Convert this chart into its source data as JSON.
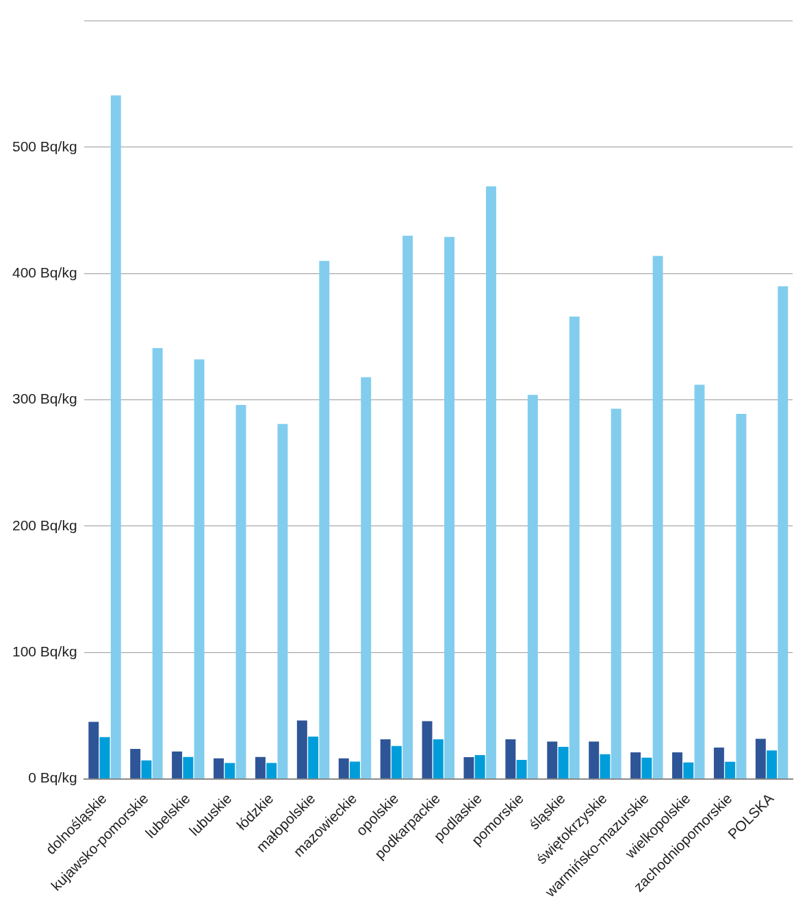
{
  "chart_data": {
    "type": "bar",
    "categories": [
      "dolnośląskie",
      "kujawsko-pomorskie",
      "lubelskie",
      "lubuskie",
      "łódzkie",
      "małopolskie",
      "mazowieckie",
      "opolskie",
      "podkarpackie",
      "podlaskie",
      "pomorskie",
      "śląskie",
      "świętokrzyskie",
      "warmińsko-mazurskie",
      "wielkopolskie",
      "zachodniopomorskie",
      "POLSKA"
    ],
    "series": [
      {
        "color": "#2e5597",
        "values": [
          45.1,
          23.7,
          21.6,
          16.2,
          17.3,
          46.2,
          16.2,
          31.2,
          45.6,
          17.2,
          31.2,
          29.5,
          29.5,
          21.0,
          21.0,
          24.7,
          31.7
        ]
      },
      {
        "color": "#009ddb",
        "values": [
          33.0,
          14.6,
          17.3,
          12.5,
          12.5,
          33.4,
          13.6,
          25.9,
          31.2,
          18.8,
          15.0,
          25.3,
          19.4,
          16.8,
          12.9,
          13.5,
          22.5
        ]
      },
      {
        "color": "#82cdee",
        "values": [
          541,
          341,
          332,
          296,
          281,
          410,
          318,
          430,
          429,
          469,
          304,
          366,
          293,
          414,
          312,
          289,
          390
        ]
      }
    ],
    "ylim": [
      0,
      600
    ],
    "yticks": [
      {
        "value": 0,
        "label": "0 Bq/kg"
      },
      {
        "value": 100,
        "label": "100 Bq/kg"
      },
      {
        "value": 200,
        "label": "200 Bq/kg"
      },
      {
        "value": 300,
        "label": "300 Bq/kg"
      },
      {
        "value": 400,
        "label": "400 Bq/kg"
      },
      {
        "value": 500,
        "label": "500 Bq/kg"
      },
      {
        "value": 600,
        "label": null
      }
    ],
    "grid": "y",
    "legend": false
  }
}
